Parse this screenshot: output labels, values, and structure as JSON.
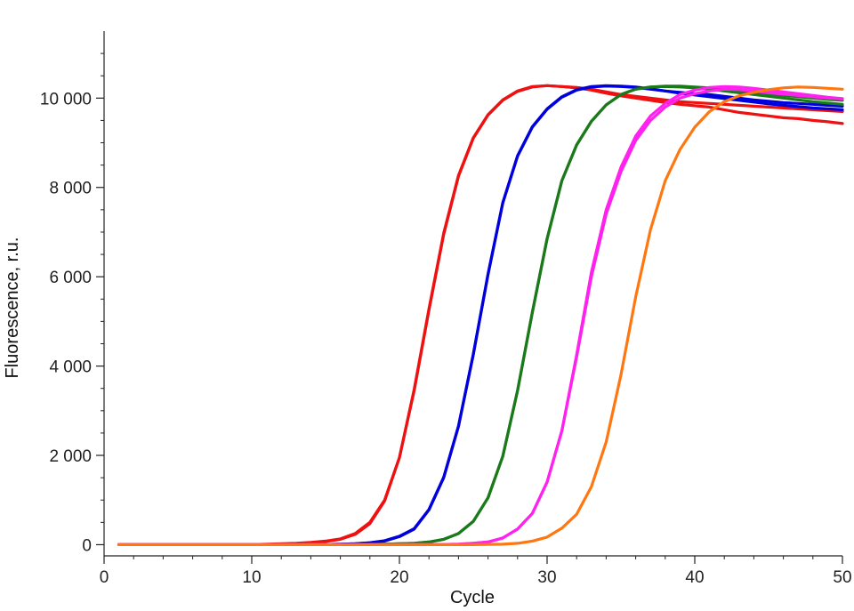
{
  "chart_data": {
    "type": "line",
    "title": "",
    "xlabel": "Cycle",
    "ylabel": "Fluorescence, r.u.",
    "xlim": [
      0,
      50
    ],
    "ylim": [
      -250,
      11500
    ],
    "x_ticks": [
      0,
      10,
      20,
      30,
      40,
      50
    ],
    "x_tick_labels": [
      "0",
      "10",
      "20",
      "30",
      "40",
      "50"
    ],
    "y_ticks": [
      0,
      2000,
      4000,
      6000,
      8000,
      10000
    ],
    "y_tick_labels": [
      "0",
      "2 000",
      "4 000",
      "6 000",
      "8 000",
      "10 000"
    ],
    "grid": false,
    "legend": "none",
    "x": [
      1,
      2,
      3,
      4,
      5,
      6,
      7,
      8,
      9,
      10,
      11,
      12,
      13,
      14,
      15,
      16,
      17,
      18,
      19,
      20,
      21,
      22,
      23,
      24,
      25,
      26,
      27,
      28,
      29,
      30,
      31,
      32,
      33,
      34,
      35,
      36,
      37,
      38,
      39,
      40,
      41,
      42,
      43,
      44,
      45,
      46,
      47,
      48,
      49,
      50
    ],
    "series": [
      {
        "color": "#ee1111",
        "values": [
          0,
          0,
          0,
          0,
          0,
          0,
          0,
          0,
          0,
          0,
          10,
          20,
          30,
          50,
          80,
          130,
          250,
          500,
          1000,
          1950,
          3450,
          5250,
          6950,
          8250,
          9100,
          9620,
          9950,
          10150,
          10250,
          10280,
          10260,
          10240,
          10200,
          10140,
          10080,
          10040,
          10000,
          9960,
          9920,
          9900,
          9880,
          9860,
          9840,
          9820,
          9800,
          9780,
          9760,
          9740,
          9720,
          9700
        ]
      },
      {
        "color": "#ee1111",
        "values": [
          0,
          0,
          0,
          0,
          0,
          0,
          0,
          0,
          0,
          0,
          5,
          10,
          20,
          40,
          70,
          120,
          230,
          470,
          980,
          1950,
          3480,
          5280,
          6980,
          8270,
          9110,
          9630,
          9960,
          10160,
          10260,
          10280,
          10260,
          10230,
          10180,
          10110,
          10050,
          10000,
          9950,
          9900,
          9860,
          9830,
          9800,
          9740,
          9680,
          9640,
          9600,
          9560,
          9540,
          9500,
          9470,
          9430
        ]
      },
      {
        "color": "#0000dd",
        "values": [
          0,
          0,
          0,
          0,
          0,
          0,
          0,
          0,
          0,
          0,
          0,
          0,
          0,
          0,
          5,
          10,
          20,
          40,
          80,
          180,
          350,
          780,
          1500,
          2650,
          4250,
          6050,
          7650,
          8700,
          9350,
          9750,
          10020,
          10180,
          10250,
          10270,
          10260,
          10240,
          10200,
          10160,
          10130,
          10100,
          10080,
          10040,
          10000,
          9960,
          9930,
          9900,
          9880,
          9860,
          9840,
          9820
        ]
      },
      {
        "color": "#0000dd",
        "values": [
          0,
          0,
          0,
          0,
          0,
          0,
          0,
          0,
          0,
          0,
          0,
          0,
          0,
          0,
          5,
          10,
          20,
          45,
          90,
          190,
          360,
          790,
          1510,
          2660,
          4260,
          6060,
          7660,
          8710,
          9360,
          9760,
          10030,
          10190,
          10260,
          10280,
          10270,
          10250,
          10210,
          10160,
          10110,
          10070,
          10030,
          9990,
          9950,
          9910,
          9870,
          9840,
          9810,
          9780,
          9760,
          9740
        ]
      },
      {
        "color": "#1a7a1a",
        "values": [
          0,
          0,
          0,
          0,
          0,
          0,
          0,
          0,
          0,
          0,
          0,
          0,
          0,
          0,
          0,
          0,
          0,
          5,
          10,
          20,
          30,
          60,
          120,
          250,
          520,
          1050,
          1980,
          3450,
          5200,
          6850,
          8150,
          8950,
          9480,
          9850,
          10080,
          10200,
          10250,
          10260,
          10250,
          10230,
          10200,
          10160,
          10120,
          10080,
          10040,
          10000,
          9960,
          9920,
          9890,
          9860
        ]
      },
      {
        "color": "#1a7a1a",
        "values": [
          0,
          0,
          0,
          0,
          0,
          0,
          0,
          0,
          0,
          0,
          0,
          0,
          0,
          0,
          0,
          0,
          0,
          5,
          10,
          20,
          30,
          60,
          120,
          250,
          520,
          1050,
          1980,
          3450,
          5200,
          6850,
          8150,
          8950,
          9480,
          9850,
          10080,
          10200,
          10250,
          10270,
          10270,
          10250,
          10230,
          10200,
          10160,
          10120,
          10090,
          10060,
          10030,
          10000,
          9970,
          9950
        ]
      },
      {
        "color": "#ff22ee",
        "values": [
          0,
          0,
          0,
          0,
          0,
          0,
          0,
          0,
          0,
          0,
          0,
          0,
          0,
          0,
          0,
          0,
          0,
          0,
          0,
          0,
          0,
          0,
          5,
          10,
          30,
          60,
          150,
          350,
          700,
          1400,
          2550,
          4250,
          6100,
          7500,
          8450,
          9150,
          9600,
          9880,
          10080,
          10180,
          10240,
          10260,
          10250,
          10220,
          10180,
          10140,
          10100,
          10060,
          10020,
          9990
        ]
      },
      {
        "color": "#ff22ee",
        "values": [
          0,
          0,
          0,
          0,
          0,
          0,
          0,
          0,
          0,
          0,
          0,
          0,
          0,
          0,
          0,
          0,
          0,
          0,
          0,
          0,
          0,
          0,
          5,
          10,
          30,
          60,
          150,
          350,
          700,
          1400,
          2550,
          4200,
          6000,
          7400,
          8350,
          9050,
          9500,
          9800,
          10000,
          10100,
          10160,
          10200,
          10190,
          10160,
          10120,
          10090,
          10060,
          10030,
          10000,
          9980
        ]
      },
      {
        "color": "#ff7711",
        "values": [
          0,
          0,
          0,
          0,
          0,
          0,
          0,
          0,
          0,
          0,
          0,
          0,
          0,
          0,
          0,
          0,
          0,
          0,
          0,
          0,
          0,
          0,
          0,
          0,
          0,
          5,
          10,
          30,
          80,
          170,
          370,
          680,
          1300,
          2300,
          3800,
          5550,
          7050,
          8150,
          8850,
          9350,
          9700,
          9920,
          10050,
          10130,
          10190,
          10230,
          10250,
          10240,
          10220,
          10200
        ]
      }
    ]
  }
}
